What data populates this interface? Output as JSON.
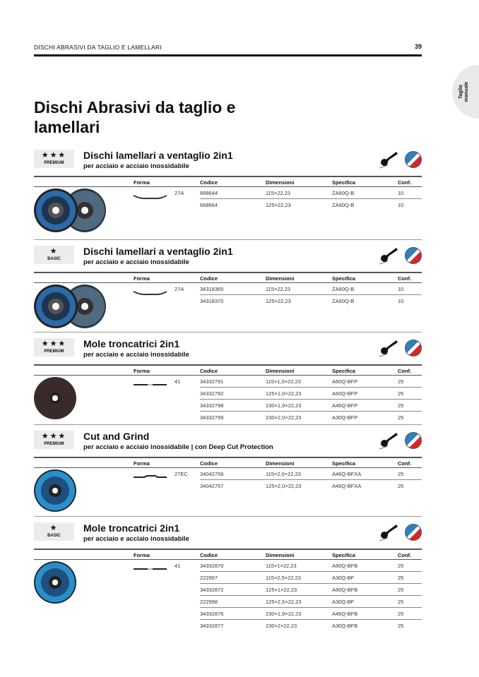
{
  "header": {
    "running_title": "DISCHI ABRASIVI DA TAGLIO E LAMELLARI",
    "page_number": "39"
  },
  "side_tab": {
    "line1": "Taglio",
    "line2": "manuale"
  },
  "page_title": "Dischi Abrasivi da taglio e lamellari",
  "columns": {
    "forma": "Forma",
    "codice": "Codice",
    "dimensioni": "Dimensioni",
    "specifica": "Specifica",
    "conf": "Conf."
  },
  "sections": [
    {
      "stars": "★★★",
      "tier": "PREMIUM",
      "title": "Dischi lamellari a ventaglio 2in1",
      "subtitle": "per acciaio e acciaio inossidabile",
      "forma": "27A",
      "shape": "flap",
      "rows": [
        [
          "668644",
          "115×22,23",
          "ZA60Q-B",
          "10"
        ],
        [
          "668664",
          "125×22,23",
          "ZA60Q-B",
          "10"
        ]
      ]
    },
    {
      "stars": "★",
      "tier": "BASIC",
      "title": "Dischi lamellari a ventaglio 2in1",
      "subtitle": "per acciaio e acciaio inossidabile",
      "forma": "27A",
      "shape": "flap",
      "rows": [
        [
          "34318365",
          "115×22,23",
          "ZA60Q-B",
          "10"
        ],
        [
          "34318370",
          "125×22,23",
          "ZA60Q-B",
          "10"
        ]
      ]
    },
    {
      "stars": "★★★",
      "tier": "PREMIUM",
      "title": "Mole troncatrici 2in1",
      "subtitle": "per acciaio e acciaio inossidabile",
      "forma": "41",
      "shape": "flat",
      "rows": [
        [
          "34332791",
          "115×1,0×22,23",
          "A60Q-BFP",
          "25"
        ],
        [
          "34332792",
          "125×1,0×22,23",
          "A60Q-BFP",
          "25"
        ],
        [
          "34332798",
          "230×1,9×22,23",
          "A46Q-BFP",
          "25"
        ],
        [
          "34332799",
          "230×2,0×22,23",
          "A30Q-BFP",
          "25"
        ]
      ]
    },
    {
      "stars": "★★★",
      "tier": "PREMIUM",
      "title": "Cut and Grind",
      "subtitle": "per acciaio e acciaio inossidabile | con Deep Cut Protection",
      "forma": "27EC",
      "shape": "depressed",
      "rows": [
        [
          "34042756",
          "115×2,0×22,23",
          "A46Q-BFXA",
          "25"
        ],
        [
          "34042757",
          "125×2,0×22,23",
          "A46Q-BFXA",
          "25"
        ]
      ]
    },
    {
      "stars": "★",
      "tier": "BASIC",
      "title": "Mole troncatrici 2in1",
      "subtitle": "per acciaio e acciaio inossidabile",
      "forma": "41",
      "shape": "flat",
      "rows": [
        [
          "34332870",
          "115×1×22,23",
          "A60Q-BFB",
          "25"
        ],
        [
          "222997",
          "115×2,5×22,23",
          "A30Q-BF",
          "25"
        ],
        [
          "34332872",
          "125×1×22,23",
          "A60Q-BFB",
          "25"
        ],
        [
          "222998",
          "125×2,5×22,23",
          "A30Q-BF",
          "25"
        ],
        [
          "34332876",
          "230×1,9×22,23",
          "A46Q-BFB",
          "25"
        ],
        [
          "34332877",
          "230×2×22,23",
          "A30Q-BFB",
          "25"
        ]
      ]
    }
  ],
  "colors": {
    "flap_blue": "#2b6aa8",
    "cut_dark": "#3a2a2a",
    "logo_blue": "#2f7fc1",
    "logo_red": "#d9252a",
    "tab_gray": "#e9e9e9"
  }
}
